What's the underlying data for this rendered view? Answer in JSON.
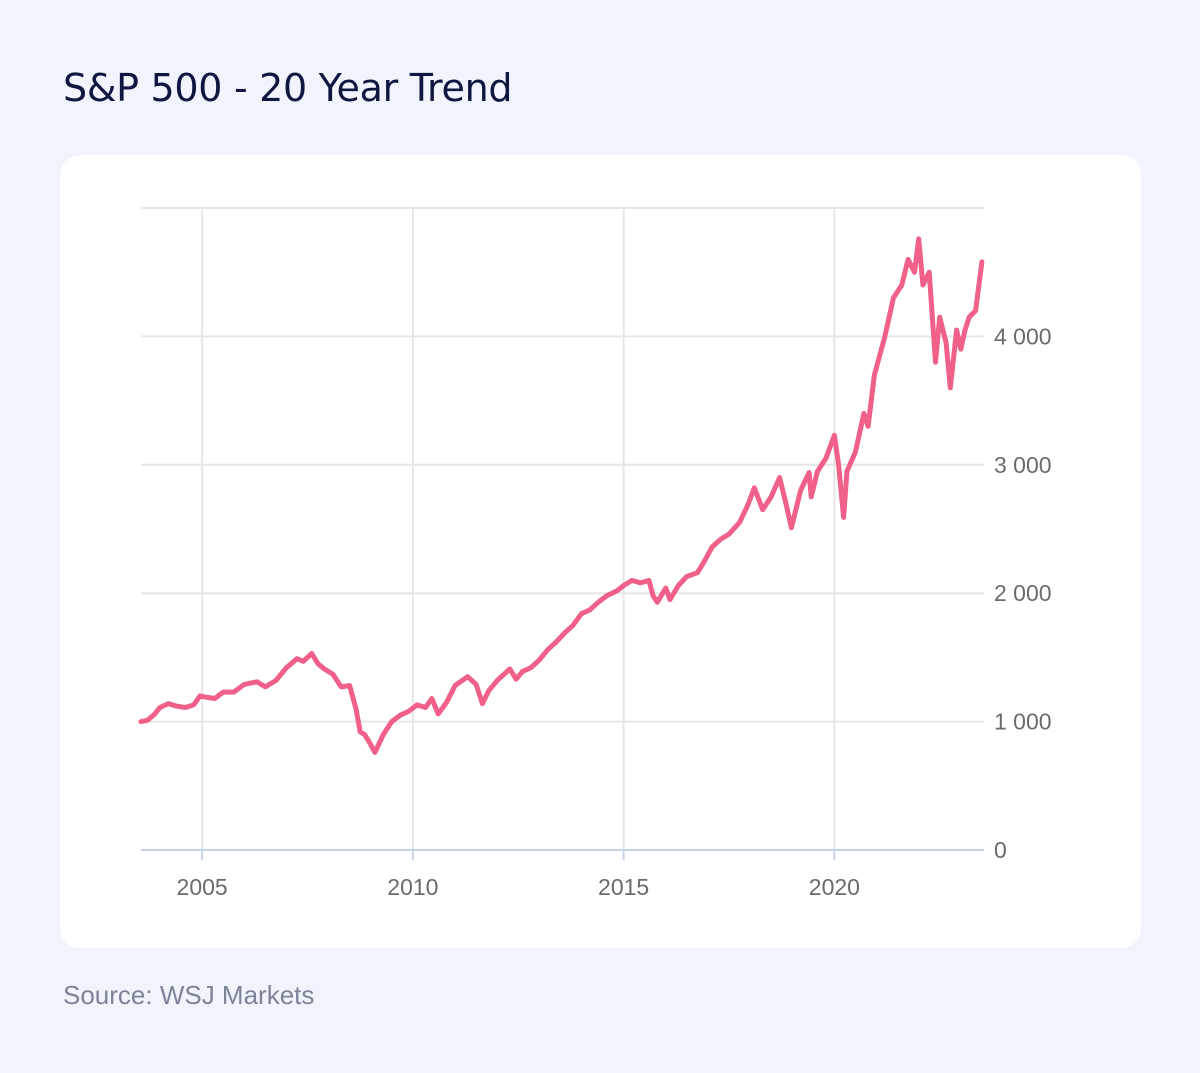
{
  "title": "S&P 500 - 20 Year Trend",
  "source": "Source: WSJ Markets",
  "colors": {
    "line": "#f06088",
    "background": "#f1f4fd",
    "card": "#ffffff",
    "grid": "#e6e6e6",
    "baseline": "#c5d3ea"
  },
  "chart_data": {
    "type": "line",
    "title": "",
    "xlabel": "",
    "ylabel": "",
    "xlim": [
      2003.55,
      2023.55
    ],
    "ylim": [
      0,
      5000
    ],
    "grid": true,
    "y_axis_side": "right",
    "x_ticks": [
      2005,
      2010,
      2015,
      2020
    ],
    "x_tick_labels": [
      "2005",
      "2010",
      "2015",
      "2020"
    ],
    "y_ticks": [
      0,
      1000,
      2000,
      3000,
      4000
    ],
    "y_tick_labels": [
      "0",
      "1 000",
      "2 000",
      "3 000",
      "4 000"
    ],
    "series": [
      {
        "x": [
          2003.55,
          2003.7,
          2003.85,
          2004.0,
          2004.2,
          2004.4,
          2004.6,
          2004.8,
          2004.95,
          2005.1,
          2005.3,
          2005.5,
          2005.75,
          2006.0,
          2006.3,
          2006.5,
          2006.75,
          2007.0,
          2007.25,
          2007.4,
          2007.6,
          2007.75,
          2007.9,
          2008.1,
          2008.3,
          2008.5,
          2008.65,
          2008.75,
          2008.85,
          2008.95,
          2009.1,
          2009.3,
          2009.5,
          2009.7,
          2009.9,
          2010.1,
          2010.3,
          2010.45,
          2010.6,
          2010.8,
          2011.0,
          2011.3,
          2011.5,
          2011.65,
          2011.8,
          2012.0,
          2012.3,
          2012.45,
          2012.6,
          2012.8,
          2013.0,
          2013.2,
          2013.4,
          2013.6,
          2013.8,
          2014.0,
          2014.2,
          2014.4,
          2014.6,
          2014.85,
          2015.0,
          2015.2,
          2015.4,
          2015.6,
          2015.7,
          2015.8,
          2016.0,
          2016.1,
          2016.3,
          2016.5,
          2016.75,
          2016.9,
          2017.1,
          2017.3,
          2017.5,
          2017.75,
          2017.95,
          2018.1,
          2018.3,
          2018.5,
          2018.7,
          2018.85,
          2018.98,
          2019.2,
          2019.4,
          2019.45,
          2019.6,
          2019.8,
          2020.0,
          2020.1,
          2020.22,
          2020.3,
          2020.5,
          2020.7,
          2020.8,
          2020.95,
          2021.2,
          2021.4,
          2021.6,
          2021.75,
          2021.9,
          2022.0,
          2022.1,
          2022.25,
          2022.4,
          2022.5,
          2022.65,
          2022.75,
          2022.9,
          2023.0,
          2023.1,
          2023.2,
          2023.35,
          2023.5
        ],
        "y": [
          1000,
          1010,
          1050,
          1110,
          1140,
          1120,
          1110,
          1130,
          1200,
          1190,
          1180,
          1230,
          1230,
          1290,
          1310,
          1270,
          1320,
          1420,
          1490,
          1470,
          1530,
          1450,
          1410,
          1370,
          1270,
          1280,
          1100,
          920,
          900,
          850,
          760,
          900,
          1000,
          1050,
          1080,
          1130,
          1110,
          1180,
          1060,
          1150,
          1280,
          1350,
          1290,
          1140,
          1240,
          1320,
          1410,
          1330,
          1390,
          1420,
          1480,
          1560,
          1620,
          1690,
          1750,
          1840,
          1870,
          1930,
          1980,
          2020,
          2060,
          2100,
          2080,
          2100,
          1980,
          1930,
          2040,
          1950,
          2060,
          2130,
          2160,
          2240,
          2360,
          2420,
          2460,
          2550,
          2690,
          2820,
          2650,
          2750,
          2900,
          2700,
          2510,
          2800,
          2940,
          2750,
          2950,
          3050,
          3230,
          3000,
          2590,
          2950,
          3100,
          3400,
          3300,
          3700,
          4000,
          4300,
          4400,
          4600,
          4500,
          4760,
          4400,
          4500,
          3800,
          4150,
          3950,
          3600,
          4050,
          3900,
          4050,
          4150,
          4200,
          4580
        ]
      }
    ]
  }
}
